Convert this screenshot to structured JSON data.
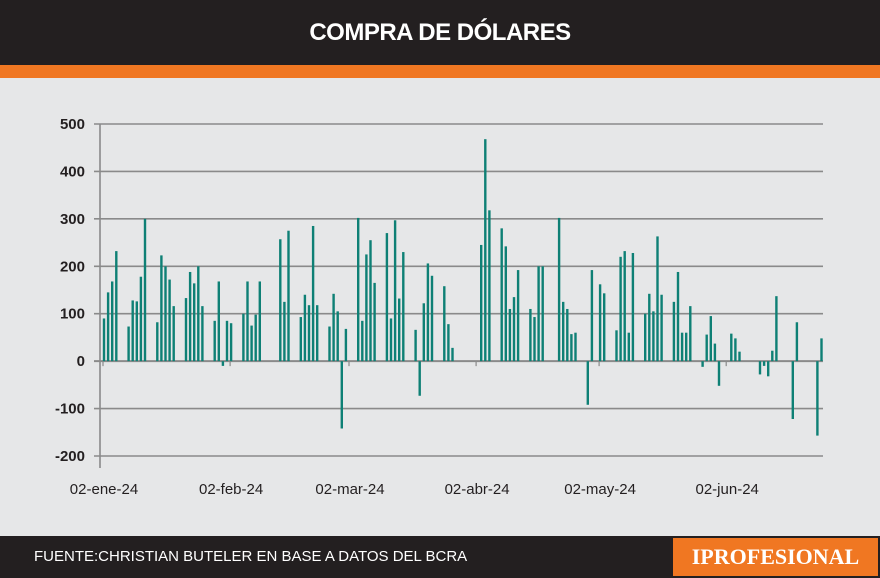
{
  "title": "COMPRA DE DÓLARES",
  "source": "FUENTE:CHRISTIAN BUTELER EN BASE A DATOS DEL BCRA",
  "logo": "IPROFESIONAL",
  "colors": {
    "bar": "#0e8075",
    "accent": "#f07722",
    "header": "#231f20"
  },
  "chart_data": {
    "type": "bar",
    "title": "COMPRA DE DÓLARES",
    "xlabel": "",
    "ylabel": "",
    "ylim": [
      -200,
      500
    ],
    "grid": true,
    "yticks": [
      "500",
      "400",
      "300",
      "200",
      "100",
      "0",
      "-100",
      "-200"
    ],
    "xticks": [
      {
        "date": "2024-01-02",
        "label": "02-ene-24"
      },
      {
        "date": "2024-02-02",
        "label": "02-feb-24"
      },
      {
        "date": "2024-03-02",
        "label": "02-mar-24"
      },
      {
        "date": "2024-04-02",
        "label": "02-abr-24"
      },
      {
        "date": "2024-05-02",
        "label": "02-may-24"
      },
      {
        "date": "2024-06-02",
        "label": "02-jun-24"
      }
    ],
    "points": [
      [
        "2024-01-02",
        90
      ],
      [
        "2024-01-03",
        145
      ],
      [
        "2024-01-04",
        168
      ],
      [
        "2024-01-05",
        232
      ],
      [
        "2024-01-08",
        73
      ],
      [
        "2024-01-09",
        128
      ],
      [
        "2024-01-10",
        126
      ],
      [
        "2024-01-11",
        178
      ],
      [
        "2024-01-12",
        300
      ],
      [
        "2024-01-15",
        82
      ],
      [
        "2024-01-16",
        223
      ],
      [
        "2024-01-17",
        200
      ],
      [
        "2024-01-18",
        172
      ],
      [
        "2024-01-19",
        116
      ],
      [
        "2024-01-22",
        133
      ],
      [
        "2024-01-23",
        188
      ],
      [
        "2024-01-24",
        164
      ],
      [
        "2024-01-25",
        200
      ],
      [
        "2024-01-26",
        116
      ],
      [
        "2024-01-29",
        85
      ],
      [
        "2024-01-30",
        168
      ],
      [
        "2024-01-31",
        -10
      ],
      [
        "2024-02-01",
        85
      ],
      [
        "2024-02-02",
        80
      ],
      [
        "2024-02-05",
        100
      ],
      [
        "2024-02-06",
        168
      ],
      [
        "2024-02-07",
        75
      ],
      [
        "2024-02-08",
        98
      ],
      [
        "2024-02-09",
        168
      ],
      [
        "2024-02-14",
        257
      ],
      [
        "2024-02-15",
        125
      ],
      [
        "2024-02-16",
        275
      ],
      [
        "2024-02-19",
        93
      ],
      [
        "2024-02-20",
        140
      ],
      [
        "2024-02-21",
        118
      ],
      [
        "2024-02-22",
        285
      ],
      [
        "2024-02-23",
        118
      ],
      [
        "2024-02-26",
        73
      ],
      [
        "2024-02-27",
        142
      ],
      [
        "2024-02-28",
        105
      ],
      [
        "2024-02-29",
        -142
      ],
      [
        "2024-03-01",
        68
      ],
      [
        "2024-03-04",
        302
      ],
      [
        "2024-03-05",
        85
      ],
      [
        "2024-03-06",
        225
      ],
      [
        "2024-03-07",
        255
      ],
      [
        "2024-03-08",
        165
      ],
      [
        "2024-03-11",
        270
      ],
      [
        "2024-03-12",
        90
      ],
      [
        "2024-03-13",
        297
      ],
      [
        "2024-03-14",
        132
      ],
      [
        "2024-03-15",
        230
      ],
      [
        "2024-03-18",
        66
      ],
      [
        "2024-03-19",
        -73
      ],
      [
        "2024-03-20",
        122
      ],
      [
        "2024-03-21",
        206
      ],
      [
        "2024-03-22",
        180
      ],
      [
        "2024-03-25",
        158
      ],
      [
        "2024-03-26",
        78
      ],
      [
        "2024-03-27",
        28
      ],
      [
        "2024-04-03",
        245
      ],
      [
        "2024-04-04",
        468
      ],
      [
        "2024-04-05",
        318
      ],
      [
        "2024-04-08",
        280
      ],
      [
        "2024-04-09",
        242
      ],
      [
        "2024-04-10",
        110
      ],
      [
        "2024-04-11",
        135
      ],
      [
        "2024-04-12",
        192
      ],
      [
        "2024-04-15",
        110
      ],
      [
        "2024-04-16",
        93
      ],
      [
        "2024-04-17",
        200
      ],
      [
        "2024-04-18",
        200
      ],
      [
        "2024-04-22",
        302
      ],
      [
        "2024-04-23",
        125
      ],
      [
        "2024-04-24",
        110
      ],
      [
        "2024-04-25",
        57
      ],
      [
        "2024-04-26",
        60
      ],
      [
        "2024-04-29",
        -92
      ],
      [
        "2024-04-30",
        192
      ],
      [
        "2024-05-02",
        162
      ],
      [
        "2024-05-03",
        143
      ],
      [
        "2024-05-06",
        65
      ],
      [
        "2024-05-07",
        220
      ],
      [
        "2024-05-08",
        232
      ],
      [
        "2024-05-09",
        60
      ],
      [
        "2024-05-10",
        228
      ],
      [
        "2024-05-13",
        100
      ],
      [
        "2024-05-14",
        142
      ],
      [
        "2024-05-15",
        105
      ],
      [
        "2024-05-16",
        263
      ],
      [
        "2024-05-17",
        140
      ],
      [
        "2024-05-20",
        125
      ],
      [
        "2024-05-21",
        188
      ],
      [
        "2024-05-22",
        60
      ],
      [
        "2024-05-23",
        60
      ],
      [
        "2024-05-24",
        116
      ],
      [
        "2024-05-27",
        -12
      ],
      [
        "2024-05-28",
        56
      ],
      [
        "2024-05-29",
        95
      ],
      [
        "2024-05-30",
        37
      ],
      [
        "2024-05-31",
        -52
      ],
      [
        "2024-06-03",
        58
      ],
      [
        "2024-06-04",
        48
      ],
      [
        "2024-06-05",
        20
      ],
      [
        "2024-06-10",
        -28
      ],
      [
        "2024-06-11",
        -10
      ],
      [
        "2024-06-12",
        -32
      ],
      [
        "2024-06-13",
        22
      ],
      [
        "2024-06-14",
        137
      ],
      [
        "2024-06-18",
        -122
      ],
      [
        "2024-06-19",
        82
      ],
      [
        "2024-06-24",
        -157
      ],
      [
        "2024-06-25",
        48
      ]
    ]
  }
}
